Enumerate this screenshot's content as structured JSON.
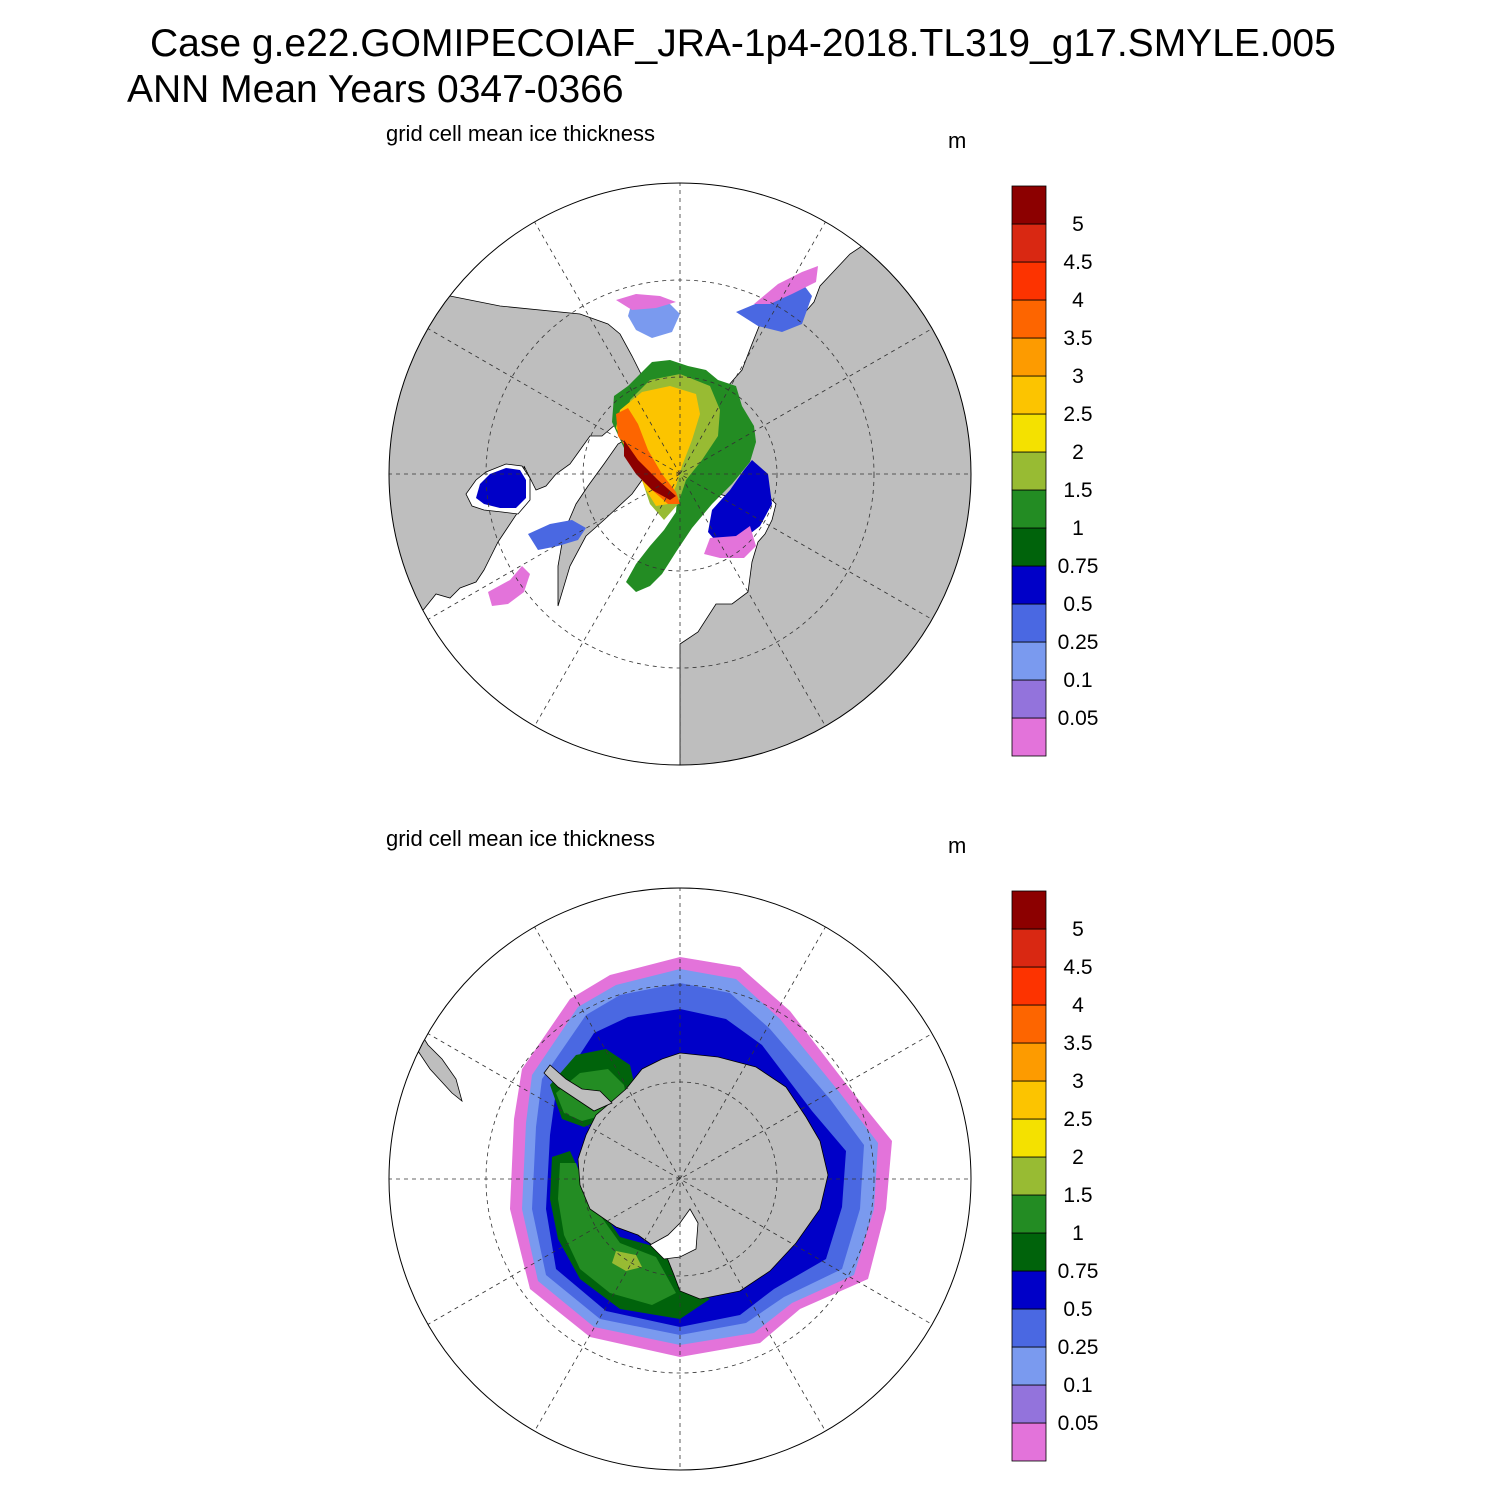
{
  "figure": {
    "title_line1": "Case g.e22.GOMIPECOIAF_JRA-1p4-2018.TL319_g17.SMYLE.005",
    "title_line2": "ANN Mean    Years 0347-0366"
  },
  "colorbar": {
    "colors": [
      "#e373da",
      "#9373dc",
      "#7a9aef",
      "#4a68e2",
      "#0000c8",
      "#00630b",
      "#238c23",
      "#98bb33",
      "#f4e100",
      "#fcc400",
      "#fd9b00",
      "#fd6500",
      "#fd3300",
      "#d92812",
      "#8c0000"
    ],
    "labels": [
      "0.05",
      "0.1",
      "0.25",
      "0.5",
      "0.75",
      "1",
      "1.5",
      "2",
      "2.5",
      "3",
      "3.5",
      "4",
      "4.5",
      "5"
    ]
  },
  "chart_data": [
    {
      "type": "heatmap",
      "projection": "polar stereographic",
      "hemisphere": "north",
      "title": "grid cell mean ice thickness",
      "units": "m",
      "contour_levels": [
        0.05,
        0.1,
        0.25,
        0.5,
        0.75,
        1,
        1.5,
        2,
        2.5,
        3,
        3.5,
        4,
        4.5,
        5
      ],
      "grid": true
    },
    {
      "type": "heatmap",
      "projection": "polar stereographic",
      "hemisphere": "south",
      "title": "grid cell mean ice thickness",
      "units": "m",
      "contour_levels": [
        0.05,
        0.1,
        0.25,
        0.5,
        0.75,
        1,
        1.5,
        2,
        2.5,
        3,
        3.5,
        4,
        4.5,
        5
      ],
      "grid": true
    }
  ]
}
